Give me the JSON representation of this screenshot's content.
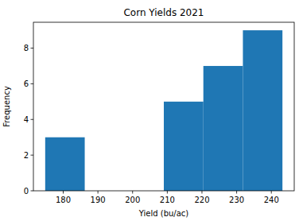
{
  "chart_data": {
    "type": "histogram",
    "title": "Corn Yields 2021",
    "x_label": "Yield (bu/ac)",
    "y_label": "Frequency",
    "bins": [
      174.8,
      186.2,
      197.6,
      209.0,
      220.4,
      231.8,
      243.2
    ],
    "values": [
      3,
      0,
      0,
      5,
      7,
      9
    ],
    "color": "#1f77b4",
    "xlim": [
      171.4,
      246.6
    ],
    "xticks": [
      180,
      190,
      200,
      210,
      220,
      230,
      240
    ],
    "ylim": [
      0,
      9.45
    ],
    "yticks": [
      0,
      2,
      4,
      6,
      8
    ],
    "grid": false
  }
}
